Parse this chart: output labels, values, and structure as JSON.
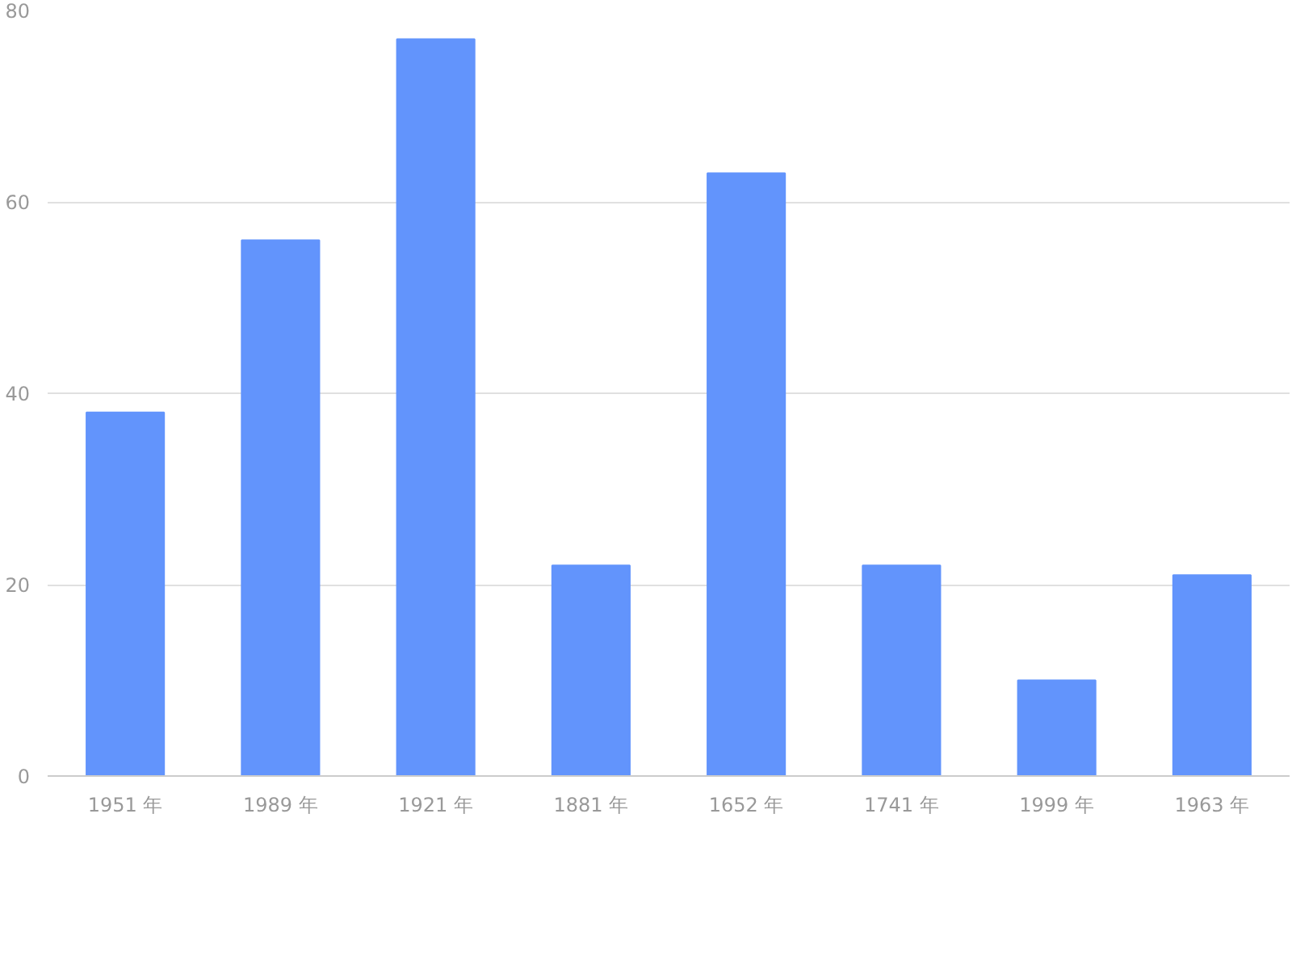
{
  "chart_data": {
    "type": "bar",
    "categories": [
      "1951 年",
      "1989 年",
      "1921 年",
      "1881 年",
      "1652 年",
      "1741 年",
      "1999 年",
      "1963 年"
    ],
    "values": [
      38,
      56,
      77,
      22,
      63,
      22,
      10,
      21
    ],
    "color": "#6294fc",
    "ylim": [
      0,
      80
    ],
    "yticks": [
      0,
      20,
      40,
      60,
      80
    ],
    "grid": "y"
  }
}
